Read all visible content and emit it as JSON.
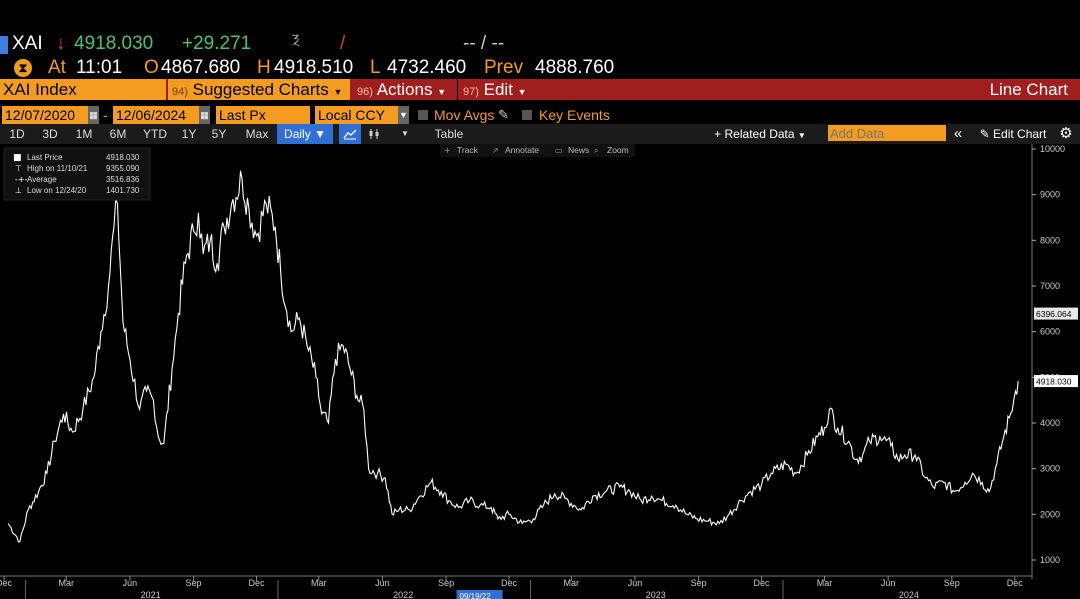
{
  "header": {
    "ticker": "XAI",
    "arrow": "↓",
    "last": "4918.030",
    "change": "+29.271",
    "dash": "-- / --",
    "at_label": "At",
    "time": "11:01",
    "o_label": "O",
    "open": "4867.680",
    "h_label": "H",
    "high": "4918.510",
    "l_label": "L",
    "low": "4732.460",
    "prev_label": "Prev",
    "prev": "4888.760"
  },
  "menu": {
    "security": "XAI Index",
    "suggested_num": "94)",
    "suggested": "Suggested Charts",
    "actions_num": "96)",
    "actions": "Actions",
    "edit_num": "97)",
    "edit": "Edit",
    "chart_type": "Line Chart"
  },
  "controls": {
    "start_date": "12/07/2020",
    "date_sep": "-",
    "end_date": "12/06/2024",
    "field": "Last Px",
    "currency": "Local CCY",
    "mov_avgs": "Mov Avgs",
    "key_events": "Key Events"
  },
  "ranges": [
    "1D",
    "3D",
    "1M",
    "6M",
    "YTD",
    "1Y",
    "5Y",
    "Max"
  ],
  "frequency": "Daily",
  "table_label": "Table",
  "related_data": "Related Data",
  "add_data_placeholder": "Add Data",
  "edit_chart": "Edit Chart",
  "tools": [
    "Track",
    "Annotate",
    "News",
    "Zoom"
  ],
  "legend": {
    "rows": [
      {
        "label": "Last Price",
        "value": "4918.030"
      },
      {
        "label": "High on 11/10/21",
        "value": "9355.090"
      },
      {
        "label": "Average",
        "value": "3516.836"
      },
      {
        "label": "Low on 12/24/20",
        "value": "1401.730"
      }
    ]
  },
  "price_tags": [
    "6396.064",
    "4918.030"
  ],
  "cursor_date": "09/19/22",
  "colors": {
    "accent": "#f39c1f",
    "menu_bar": "#a01e1e",
    "up": "#49c46a",
    "down": "#e23b3b",
    "line": "#ffffff",
    "selected": "#2f6fd6"
  },
  "chart_data": {
    "type": "line",
    "title": "",
    "xlabel": "",
    "ylabel": "",
    "ylim": [
      0,
      10200
    ],
    "yticks": [
      1000,
      2000,
      3000,
      4000,
      5000,
      6000,
      7000,
      8000,
      9000,
      10000
    ],
    "xlim": [
      "2020-12-01",
      "2024-12-10"
    ],
    "month_ticks": [
      {
        "label": "Dec",
        "date": "2020-12-01"
      },
      {
        "label": "Mar",
        "date": "2021-03-01"
      },
      {
        "label": "Jun",
        "date": "2021-06-01"
      },
      {
        "label": "Sep",
        "date": "2021-09-01"
      },
      {
        "label": "Dec",
        "date": "2021-12-01"
      },
      {
        "label": "Mar",
        "date": "2022-03-01"
      },
      {
        "label": "Jun",
        "date": "2022-06-01"
      },
      {
        "label": "Sep",
        "date": "2022-09-01"
      },
      {
        "label": "Dec",
        "date": "2022-12-01"
      },
      {
        "label": "Mar",
        "date": "2023-03-01"
      },
      {
        "label": "Jun",
        "date": "2023-06-01"
      },
      {
        "label": "Sep",
        "date": "2023-09-01"
      },
      {
        "label": "Dec",
        "date": "2023-12-01"
      },
      {
        "label": "Mar",
        "date": "2024-03-01"
      },
      {
        "label": "Jun",
        "date": "2024-06-01"
      },
      {
        "label": "Sep",
        "date": "2024-09-01"
      },
      {
        "label": "Dec",
        "date": "2024-12-01"
      }
    ],
    "year_labels": [
      {
        "label": "2021",
        "date": "2021-07-01"
      },
      {
        "label": "2022",
        "date": "2022-07-01"
      },
      {
        "label": "2023",
        "date": "2023-07-01"
      },
      {
        "label": "2024",
        "date": "2024-07-01"
      }
    ],
    "year_separators": [
      "2021-01-01",
      "2022-01-01",
      "2023-01-01",
      "2024-01-01"
    ],
    "series": [
      {
        "name": "Last Price",
        "points": [
          [
            "2020-12-07",
            1800
          ],
          [
            "2020-12-24",
            1401.73
          ],
          [
            "2021-01-05",
            2100
          ],
          [
            "2021-01-20",
            2500
          ],
          [
            "2021-02-01",
            2900
          ],
          [
            "2021-02-12",
            3600
          ],
          [
            "2021-02-25",
            4200
          ],
          [
            "2021-03-10",
            3800
          ],
          [
            "2021-03-25",
            4300
          ],
          [
            "2021-04-10",
            5000
          ],
          [
            "2021-04-20",
            6000
          ],
          [
            "2021-05-01",
            7000
          ],
          [
            "2021-05-09",
            8300
          ],
          [
            "2021-05-14",
            8800
          ],
          [
            "2021-05-22",
            6200
          ],
          [
            "2021-06-01",
            5400
          ],
          [
            "2021-06-15",
            4300
          ],
          [
            "2021-06-25",
            4700
          ],
          [
            "2021-07-05",
            4500
          ],
          [
            "2021-07-12",
            3700
          ],
          [
            "2021-07-20",
            3550
          ],
          [
            "2021-08-01",
            5200
          ],
          [
            "2021-08-10",
            6400
          ],
          [
            "2021-08-20",
            7500
          ],
          [
            "2021-09-01",
            8200
          ],
          [
            "2021-09-08",
            8600
          ],
          [
            "2021-09-15",
            7700
          ],
          [
            "2021-09-25",
            8000
          ],
          [
            "2021-10-05",
            7500
          ],
          [
            "2021-10-15",
            8300
          ],
          [
            "2021-10-28",
            8900
          ],
          [
            "2021-11-10",
            9355.09
          ],
          [
            "2021-11-20",
            8700
          ],
          [
            "2021-12-01",
            8100
          ],
          [
            "2021-12-15",
            8800
          ],
          [
            "2021-12-28",
            8300
          ],
          [
            "2022-01-05",
            7300
          ],
          [
            "2022-01-20",
            6000
          ],
          [
            "2022-02-01",
            6300
          ],
          [
            "2022-02-12",
            5700
          ],
          [
            "2022-02-25",
            5000
          ],
          [
            "2022-03-05",
            4200
          ],
          [
            "2022-03-15",
            4000
          ],
          [
            "2022-03-25",
            5400
          ],
          [
            "2022-04-05",
            5700
          ],
          [
            "2022-04-15",
            5200
          ],
          [
            "2022-04-25",
            4600
          ],
          [
            "2022-05-05",
            4300
          ],
          [
            "2022-05-12",
            3000
          ],
          [
            "2022-05-25",
            2900
          ],
          [
            "2022-06-05",
            2800
          ],
          [
            "2022-06-15",
            2000
          ],
          [
            "2022-06-25",
            2100
          ],
          [
            "2022-07-10",
            2100
          ],
          [
            "2022-07-25",
            2400
          ],
          [
            "2022-08-10",
            2700
          ],
          [
            "2022-08-25",
            2500
          ],
          [
            "2022-09-05",
            2300
          ],
          [
            "2022-09-19",
            2150
          ],
          [
            "2022-10-05",
            2300
          ],
          [
            "2022-10-20",
            2200
          ],
          [
            "2022-11-05",
            2150
          ],
          [
            "2022-11-15",
            1900
          ],
          [
            "2022-12-01",
            2000
          ],
          [
            "2022-12-20",
            1800
          ],
          [
            "2023-01-05",
            1900
          ],
          [
            "2023-01-20",
            2200
          ],
          [
            "2023-02-05",
            2450
          ],
          [
            "2023-02-20",
            2350
          ],
          [
            "2023-03-05",
            2200
          ],
          [
            "2023-03-15",
            2100
          ],
          [
            "2023-04-01",
            2400
          ],
          [
            "2023-04-20",
            2500
          ],
          [
            "2023-05-10",
            2600
          ],
          [
            "2023-05-25",
            2500
          ],
          [
            "2023-06-10",
            2300
          ],
          [
            "2023-06-25",
            2400
          ],
          [
            "2023-07-10",
            2300
          ],
          [
            "2023-07-30",
            2200
          ],
          [
            "2023-08-15",
            2000
          ],
          [
            "2023-08-30",
            1900
          ],
          [
            "2023-09-15",
            1850
          ],
          [
            "2023-10-01",
            1800
          ],
          [
            "2023-10-15",
            2000
          ],
          [
            "2023-11-01",
            2300
          ],
          [
            "2023-11-15",
            2500
          ],
          [
            "2023-12-01",
            2650
          ],
          [
            "2023-12-15",
            2900
          ],
          [
            "2024-01-05",
            3100
          ],
          [
            "2024-01-20",
            2900
          ],
          [
            "2024-02-05",
            3300
          ],
          [
            "2024-02-20",
            3700
          ],
          [
            "2024-03-01",
            3900
          ],
          [
            "2024-03-08",
            4300
          ],
          [
            "2024-03-20",
            3900
          ],
          [
            "2024-04-05",
            3600
          ],
          [
            "2024-04-15",
            3200
          ],
          [
            "2024-04-25",
            3300
          ],
          [
            "2024-05-05",
            3600
          ],
          [
            "2024-05-20",
            3700
          ],
          [
            "2024-06-05",
            3500
          ],
          [
            "2024-06-15",
            3200
          ],
          [
            "2024-06-25",
            3300
          ],
          [
            "2024-07-10",
            3300
          ],
          [
            "2024-07-25",
            2800
          ],
          [
            "2024-08-05",
            2600
          ],
          [
            "2024-08-20",
            2700
          ],
          [
            "2024-09-05",
            2500
          ],
          [
            "2024-09-20",
            2700
          ],
          [
            "2024-10-01",
            2900
          ],
          [
            "2024-10-15",
            2700
          ],
          [
            "2024-10-25",
            2500
          ],
          [
            "2024-11-05",
            3100
          ],
          [
            "2024-11-15",
            3700
          ],
          [
            "2024-11-25",
            4200
          ],
          [
            "2024-12-02",
            4700
          ],
          [
            "2024-12-06",
            4918.03
          ]
        ]
      }
    ]
  }
}
